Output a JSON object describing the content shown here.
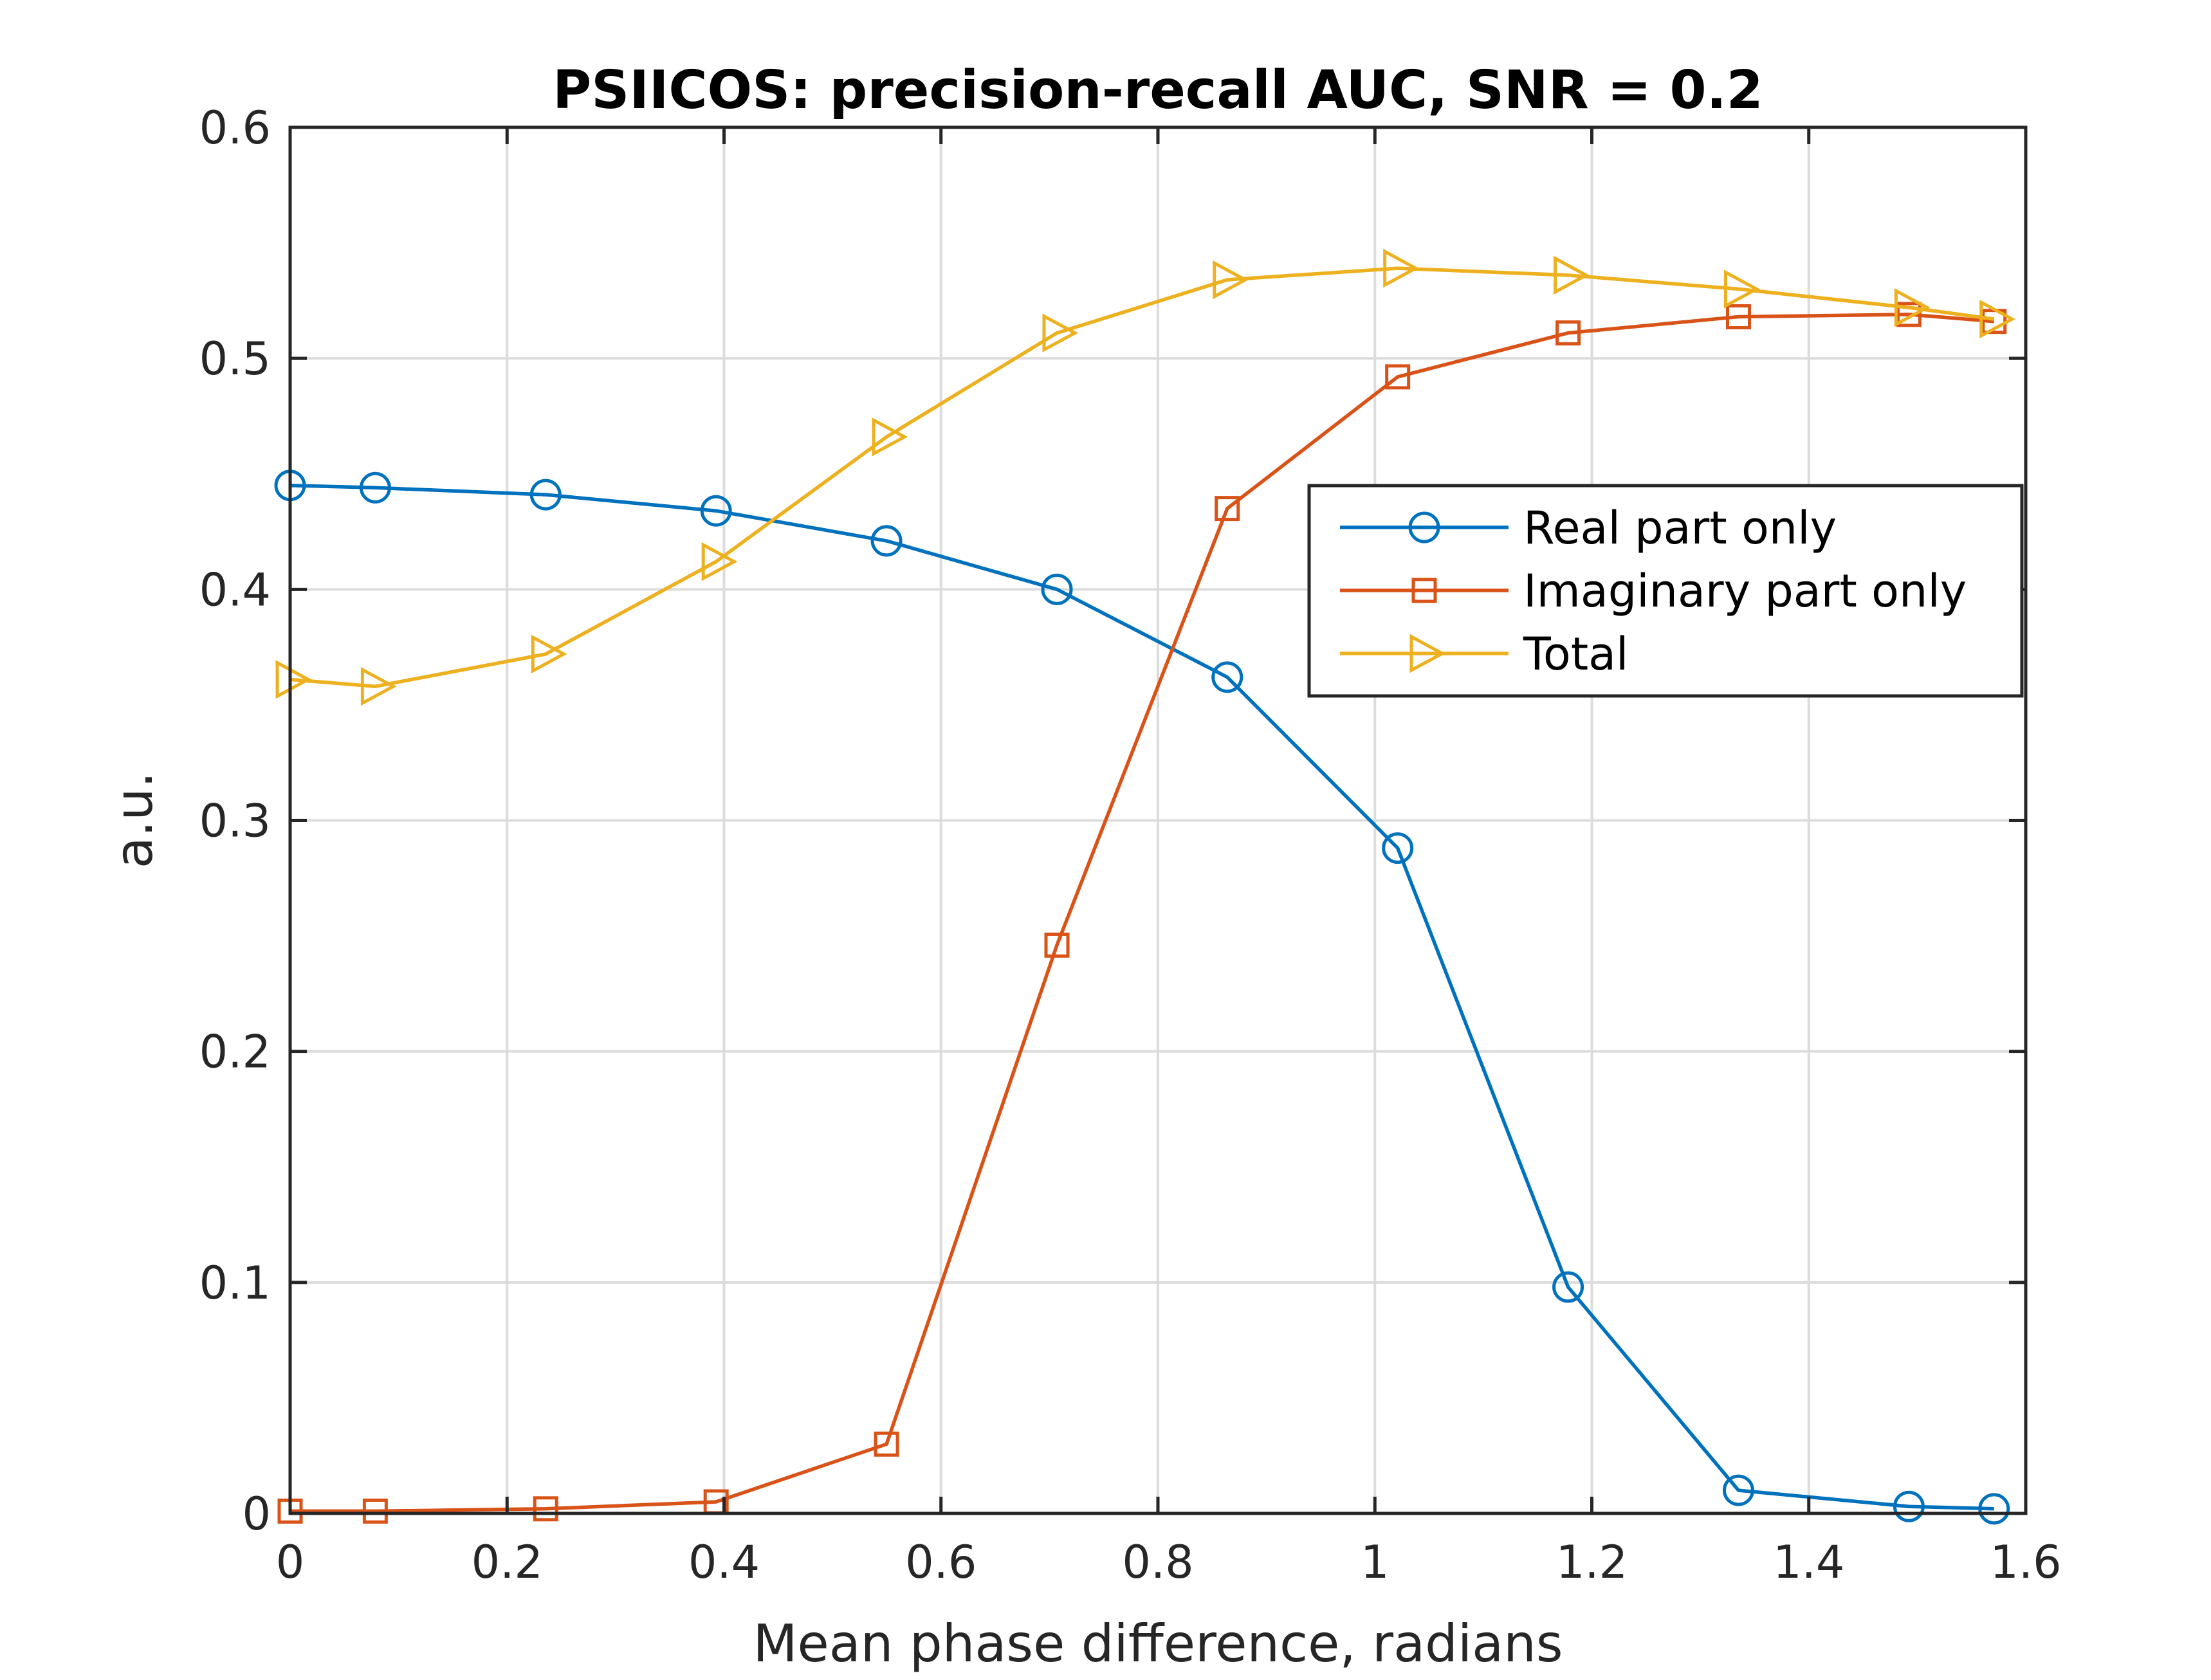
{
  "chart_data": {
    "type": "line",
    "title": "PSIICOS: precision-recall AUC, SNR  = 0.2",
    "xlabel": "Mean phase difference, radians",
    "ylabel": "a.u.",
    "xlim": [
      0,
      1.6
    ],
    "ylim": [
      0,
      0.6
    ],
    "xticks": [
      0,
      0.2,
      0.4,
      0.6,
      0.8,
      1,
      1.2,
      1.4,
      1.6
    ],
    "xtick_labels": [
      "0",
      "0.2",
      "0.4",
      "0.6",
      "0.8",
      "1",
      "1.2",
      "1.4",
      "1.6"
    ],
    "yticks": [
      0,
      0.1,
      0.2,
      0.3,
      0.4,
      0.5,
      0.6
    ],
    "ytick_labels": [
      "0",
      "0.1",
      "0.2",
      "0.3",
      "0.4",
      "0.5",
      "0.6"
    ],
    "grid": true,
    "legend_position": "right, upper-middle",
    "x": [
      0,
      0.0785,
      0.2356,
      0.3927,
      0.5498,
      0.7069,
      0.8639,
      1.021,
      1.1781,
      1.3352,
      1.4923,
      1.5708
    ],
    "series": [
      {
        "name": "Real part only",
        "color": "#0072BD",
        "marker": "circle",
        "values": [
          0.445,
          0.444,
          0.441,
          0.434,
          0.421,
          0.4,
          0.362,
          0.288,
          0.098,
          0.01,
          0.003,
          0.002
        ]
      },
      {
        "name": "Imaginary part only",
        "color": "#D95319",
        "marker": "square",
        "values": [
          0.001,
          0.001,
          0.002,
          0.005,
          0.03,
          0.246,
          0.435,
          0.492,
          0.511,
          0.518,
          0.519,
          0.516
        ]
      },
      {
        "name": "Total",
        "color": "#EDB120",
        "marker": "triangle-right",
        "values": [
          0.361,
          0.358,
          0.372,
          0.412,
          0.466,
          0.511,
          0.534,
          0.539,
          0.536,
          0.53,
          0.522,
          0.517
        ]
      }
    ]
  }
}
